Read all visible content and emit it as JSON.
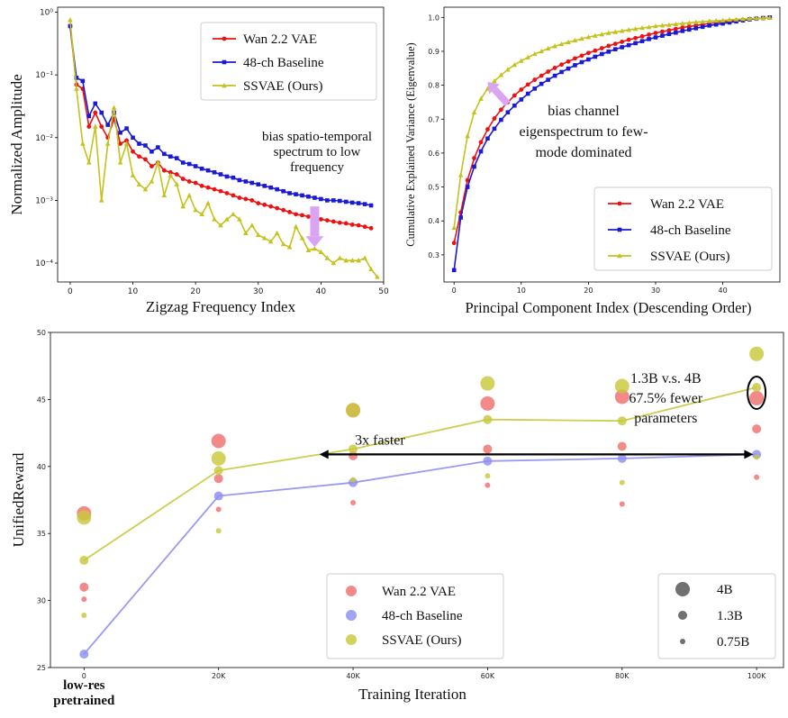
{
  "chart_data": [
    {
      "type": "line",
      "panel": "top-left",
      "yscale": "log",
      "xlabel": "Zigzag Frequency Index",
      "ylabel": "Normalized Amplitude",
      "xlim": [
        -2,
        50
      ],
      "ylim": [
        5e-05,
        1.2
      ],
      "xticks": [
        0,
        10,
        20,
        30,
        40,
        50
      ],
      "yticks": [
        {
          "value": 1,
          "label": "10⁰"
        },
        {
          "value": 0.1,
          "label": "10⁻¹"
        },
        {
          "value": 0.01,
          "label": "10⁻²"
        },
        {
          "value": 0.001,
          "label": "10⁻³"
        },
        {
          "value": 0.0001,
          "label": "10⁻⁴"
        }
      ],
      "legend_position": "top-right",
      "annotation": {
        "lines": [
          "bias spatio-temporal",
          "spectrum to low",
          "frequency"
        ],
        "arrow": "down",
        "arrow_x": 39,
        "arrow_y": [
          0.0008,
          0.00018
        ]
      },
      "series": [
        {
          "name": "Wan 2.2 VAE",
          "color": "#ee1111",
          "marker": "circle",
          "x": [
            0,
            1,
            2,
            3,
            4,
            5,
            6,
            7,
            8,
            9,
            10,
            11,
            12,
            13,
            14,
            15,
            16,
            17,
            18,
            19,
            20,
            21,
            22,
            23,
            24,
            25,
            26,
            27,
            28,
            29,
            30,
            31,
            32,
            33,
            34,
            35,
            36,
            37,
            38,
            39,
            40,
            41,
            42,
            43,
            44,
            45,
            46,
            47,
            48
          ],
          "y": [
            0.6,
            0.07,
            0.06,
            0.015,
            0.025,
            0.015,
            0.01,
            0.02,
            0.008,
            0.009,
            0.006,
            0.005,
            0.0045,
            0.0035,
            0.004,
            0.003,
            0.0028,
            0.0026,
            0.0022,
            0.002,
            0.0019,
            0.0017,
            0.0016,
            0.0015,
            0.0014,
            0.0013,
            0.0012,
            0.0011,
            0.00105,
            0.001,
            0.0009,
            0.00085,
            0.0008,
            0.00075,
            0.0007,
            0.00065,
            0.0006,
            0.00058,
            0.00055,
            0.00052,
            0.0005,
            0.00048,
            0.00046,
            0.00044,
            0.00043,
            0.00041,
            0.0004,
            0.00038,
            0.00036
          ]
        },
        {
          "name": "48-ch Baseline",
          "color": "#1a1ad4",
          "marker": "square",
          "x": [
            0,
            1,
            2,
            3,
            4,
            5,
            6,
            7,
            8,
            9,
            10,
            11,
            12,
            13,
            14,
            15,
            16,
            17,
            18,
            19,
            20,
            21,
            22,
            23,
            24,
            25,
            26,
            27,
            28,
            29,
            30,
            31,
            32,
            33,
            34,
            35,
            36,
            37,
            38,
            39,
            40,
            41,
            42,
            43,
            44,
            45,
            46,
            47,
            48
          ],
          "y": [
            0.6,
            0.09,
            0.08,
            0.022,
            0.035,
            0.025,
            0.016,
            0.025,
            0.012,
            0.014,
            0.01,
            0.008,
            0.0075,
            0.006,
            0.007,
            0.0055,
            0.005,
            0.0047,
            0.004,
            0.0038,
            0.0035,
            0.0032,
            0.003,
            0.0028,
            0.0026,
            0.0024,
            0.0023,
            0.0021,
            0.002,
            0.0019,
            0.0018,
            0.0017,
            0.0016,
            0.0015,
            0.0014,
            0.0013,
            0.00125,
            0.0012,
            0.00115,
            0.0011,
            0.00105,
            0.001,
            0.001,
            0.00098,
            0.00095,
            0.00092,
            0.0009,
            0.00087,
            0.00083
          ]
        },
        {
          "name": "SSVAE (Ours)",
          "color": "#c4c21c",
          "marker": "triangle",
          "x": [
            0,
            1,
            2,
            3,
            4,
            5,
            6,
            7,
            8,
            9,
            10,
            11,
            12,
            13,
            14,
            15,
            16,
            17,
            18,
            19,
            20,
            21,
            22,
            23,
            24,
            25,
            26,
            27,
            28,
            29,
            30,
            31,
            32,
            33,
            34,
            35,
            36,
            37,
            38,
            39,
            40,
            41,
            42,
            43,
            44,
            45,
            46,
            47,
            48,
            49
          ],
          "y": [
            0.75,
            0.06,
            0.008,
            0.004,
            0.015,
            0.001,
            0.008,
            0.03,
            0.004,
            0.008,
            0.0025,
            0.0018,
            0.0015,
            0.002,
            0.004,
            0.0012,
            0.0025,
            0.0018,
            0.0008,
            0.0012,
            0.0007,
            0.0006,
            0.0009,
            0.0005,
            0.0004,
            0.0005,
            0.0006,
            0.0005,
            0.0003,
            0.0004,
            0.00028,
            0.00025,
            0.00022,
            0.0003,
            0.0002,
            0.00018,
            0.00038,
            0.00025,
            0.00016,
            0.00017,
            0.00015,
            0.00012,
            0.0001,
            0.00012,
            0.00011,
            0.00011,
            0.00011,
            0.00012,
            8e-05,
            6e-05
          ]
        }
      ]
    },
    {
      "type": "line",
      "panel": "top-right",
      "xlabel": "Principal Component Index (Descending Order)",
      "ylabel": "Cumulative Explained Variance (Eigenvalue)",
      "xlim": [
        -1.5,
        48.5
      ],
      "ylim": [
        0.22,
        1.03
      ],
      "xticks": [
        0,
        10,
        20,
        30,
        40
      ],
      "yticks": [
        0.3,
        0.4,
        0.5,
        0.6,
        0.7,
        0.8,
        0.9,
        1.0
      ],
      "legend_position": "bottom-right",
      "annotation": {
        "lines": [
          "bias channel",
          "eigenspectrum to few-",
          "mode dominated"
        ],
        "arrow": "up-left",
        "arrow_from": [
          8,
          0.745
        ],
        "arrow_to": [
          5,
          0.81
        ]
      },
      "series": [
        {
          "name": "Wan 2.2 VAE",
          "color": "#ee1111",
          "marker": "circle",
          "y": [
            0.335,
            0.425,
            0.52,
            0.585,
            0.632,
            0.67,
            0.702,
            0.728,
            0.75,
            0.77,
            0.787,
            0.802,
            0.816,
            0.828,
            0.84,
            0.851,
            0.861,
            0.87,
            0.879,
            0.887,
            0.895,
            0.902,
            0.909,
            0.916,
            0.922,
            0.928,
            0.934,
            0.939,
            0.944,
            0.949,
            0.954,
            0.958,
            0.962,
            0.966,
            0.97,
            0.973,
            0.976,
            0.979,
            0.982,
            0.985,
            0.987,
            0.989,
            0.991,
            0.993,
            0.995,
            0.997,
            0.998,
            0.999
          ]
        },
        {
          "name": "48-ch Baseline",
          "color": "#1a1ad4",
          "marker": "square",
          "y": [
            0.255,
            0.41,
            0.5,
            0.56,
            0.605,
            0.643,
            0.672,
            0.698,
            0.72,
            0.74,
            0.758,
            0.775,
            0.79,
            0.804,
            0.816,
            0.828,
            0.839,
            0.849,
            0.859,
            0.868,
            0.876,
            0.884,
            0.892,
            0.899,
            0.906,
            0.912,
            0.918,
            0.924,
            0.93,
            0.936,
            0.941,
            0.946,
            0.951,
            0.955,
            0.96,
            0.964,
            0.968,
            0.972,
            0.976,
            0.979,
            0.982,
            0.985,
            0.988,
            0.991,
            0.994,
            0.996,
            0.998,
            1.0
          ]
        },
        {
          "name": "SSVAE (Ours)",
          "color": "#c4c21c",
          "marker": "triangle",
          "y": [
            0.38,
            0.535,
            0.65,
            0.72,
            0.76,
            0.79,
            0.812,
            0.83,
            0.846,
            0.86,
            0.872,
            0.882,
            0.892,
            0.9,
            0.908,
            0.915,
            0.921,
            0.927,
            0.932,
            0.937,
            0.942,
            0.946,
            0.95,
            0.954,
            0.957,
            0.96,
            0.963,
            0.966,
            0.969,
            0.971,
            0.974,
            0.976,
            0.978,
            0.98,
            0.982,
            0.984,
            0.986,
            0.987,
            0.989,
            0.99,
            0.991,
            0.993,
            0.994,
            0.995,
            0.996,
            0.997,
            0.998,
            0.999
          ]
        }
      ]
    },
    {
      "type": "scatter",
      "panel": "bottom",
      "xlabel": "Training Iteration",
      "ylabel": "UnifiedReward",
      "xlim": [
        -5000,
        104000
      ],
      "ylim": [
        25,
        50
      ],
      "xticks": [
        {
          "value": 0,
          "label": "0"
        },
        {
          "value": 20000,
          "label": "20K"
        },
        {
          "value": 40000,
          "label": "40K"
        },
        {
          "value": 60000,
          "label": "60K"
        },
        {
          "value": 80000,
          "label": "80K"
        },
        {
          "value": 100000,
          "label": "100K"
        }
      ],
      "yticks": [
        25,
        30,
        35,
        40,
        45,
        50
      ],
      "x_extra_label": [
        "low-res",
        "pretrained"
      ],
      "legend_position": "bottom-center",
      "size_legend": [
        {
          "label": "4B",
          "size": "large"
        },
        {
          "label": "1.3B",
          "size": "medium"
        },
        {
          "label": "0.75B",
          "size": "small"
        }
      ],
      "annotations": [
        {
          "text": "3x faster",
          "x": 44000,
          "y": 41.5,
          "arrow": "double",
          "from_x": 35000,
          "to_x": 99500,
          "arrow_y": 40.9
        },
        {
          "lines": [
            "1.3B v.s. 4B",
            "67.5% fewer",
            "parameters"
          ],
          "x": 86500,
          "y": 46.9
        }
      ],
      "series": [
        {
          "name": "Wan 2.2 VAE",
          "color": "#f07070",
          "points": [
            {
              "x": 0,
              "y": 36.5,
              "size": "4B"
            },
            {
              "x": 0,
              "y": 31.0,
              "size": "1.3B"
            },
            {
              "x": 0,
              "y": 30.1,
              "size": "0.75B"
            },
            {
              "x": 20000,
              "y": 41.9,
              "size": "4B"
            },
            {
              "x": 20000,
              "y": 39.1,
              "size": "1.3B"
            },
            {
              "x": 20000,
              "y": 36.8,
              "size": "0.75B"
            },
            {
              "x": 40000,
              "y": 44.2,
              "size": "4B"
            },
            {
              "x": 40000,
              "y": 40.8,
              "size": "1.3B"
            },
            {
              "x": 40000,
              "y": 37.3,
              "size": "0.75B"
            },
            {
              "x": 60000,
              "y": 44.7,
              "size": "4B"
            },
            {
              "x": 60000,
              "y": 41.3,
              "size": "1.3B"
            },
            {
              "x": 60000,
              "y": 38.6,
              "size": "0.75B"
            },
            {
              "x": 80000,
              "y": 45.2,
              "size": "4B"
            },
            {
              "x": 80000,
              "y": 41.5,
              "size": "1.3B"
            },
            {
              "x": 80000,
              "y": 37.2,
              "size": "0.75B"
            },
            {
              "x": 100000,
              "y": 45.1,
              "size": "4B"
            },
            {
              "x": 100000,
              "y": 42.8,
              "size": "1.3B"
            },
            {
              "x": 100000,
              "y": 39.2,
              "size": "0.75B"
            }
          ]
        },
        {
          "name": "48-ch Baseline",
          "color": "#8f8ff0",
          "line": [
            26.0,
            37.8,
            38.8,
            40.4,
            40.6,
            40.9
          ],
          "points": [
            {
              "x": 0,
              "y": 26.0,
              "size": "1.3B"
            },
            {
              "x": 20000,
              "y": 37.8,
              "size": "1.3B"
            },
            {
              "x": 40000,
              "y": 38.8,
              "size": "1.3B"
            },
            {
              "x": 60000,
              "y": 40.4,
              "size": "1.3B"
            },
            {
              "x": 80000,
              "y": 40.6,
              "size": "1.3B"
            },
            {
              "x": 100000,
              "y": 40.9,
              "size": "1.3B"
            }
          ]
        },
        {
          "name": "SSVAE (Ours)",
          "color": "#c8c83c",
          "line": [
            33.0,
            39.7,
            41.3,
            43.5,
            43.4,
            45.9
          ],
          "points": [
            {
              "x": 0,
              "y": 36.2,
              "size": "4B"
            },
            {
              "x": 0,
              "y": 33.0,
              "size": "1.3B"
            },
            {
              "x": 0,
              "y": 28.9,
              "size": "0.75B"
            },
            {
              "x": 20000,
              "y": 40.6,
              "size": "4B"
            },
            {
              "x": 20000,
              "y": 39.7,
              "size": "1.3B"
            },
            {
              "x": 20000,
              "y": 35.2,
              "size": "0.75B"
            },
            {
              "x": 40000,
              "y": 44.2,
              "size": "4B"
            },
            {
              "x": 40000,
              "y": 41.3,
              "size": "1.3B"
            },
            {
              "x": 40000,
              "y": 39.0,
              "size": "0.75B"
            },
            {
              "x": 60000,
              "y": 46.2,
              "size": "4B"
            },
            {
              "x": 60000,
              "y": 43.5,
              "size": "1.3B"
            },
            {
              "x": 60000,
              "y": 39.3,
              "size": "0.75B"
            },
            {
              "x": 80000,
              "y": 46.0,
              "size": "4B"
            },
            {
              "x": 80000,
              "y": 43.4,
              "size": "1.3B"
            },
            {
              "x": 80000,
              "y": 38.8,
              "size": "0.75B"
            },
            {
              "x": 100000,
              "y": 48.4,
              "size": "4B"
            },
            {
              "x": 100000,
              "y": 45.9,
              "size": "1.3B"
            },
            {
              "x": 100000,
              "y": 40.7,
              "size": "0.75B"
            }
          ]
        }
      ]
    }
  ]
}
